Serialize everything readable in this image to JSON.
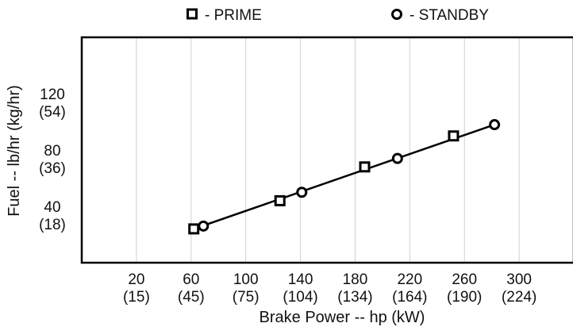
{
  "chart_data": {
    "type": "scatter",
    "title": "",
    "xlabel": "Brake Power -- hp (kW)",
    "ylabel": "Fuel -- lb/hr (kg/hr)",
    "xlim": [
      -20,
      340
    ],
    "ylim": [
      0,
      160
    ],
    "grid": "vertical",
    "legend_position": "top",
    "x_ticks": [
      {
        "value": 20,
        "label": "20",
        "sub": "(15)"
      },
      {
        "value": 60,
        "label": "60",
        "sub": "(45)"
      },
      {
        "value": 100,
        "label": "100",
        "sub": "(75)"
      },
      {
        "value": 140,
        "label": "140",
        "sub": "(104)"
      },
      {
        "value": 180,
        "label": "180",
        "sub": "(134)"
      },
      {
        "value": 220,
        "label": "220",
        "sub": "(164)"
      },
      {
        "value": 260,
        "label": "260",
        "sub": "(190)"
      },
      {
        "value": 300,
        "label": "300",
        "sub": "(224)"
      }
    ],
    "y_ticks": [
      {
        "value": 40,
        "label": "40",
        "sub": "(18)"
      },
      {
        "value": 80,
        "label": "80",
        "sub": "(36)"
      },
      {
        "value": 120,
        "label": "120",
        "sub": "(54)"
      }
    ],
    "series": [
      {
        "name": "- PRIME",
        "marker": "square",
        "points": [
          {
            "x": 62,
            "y": 24
          },
          {
            "x": 125,
            "y": 44
          },
          {
            "x": 187,
            "y": 68
          },
          {
            "x": 252,
            "y": 90
          }
        ]
      },
      {
        "name": "- STANDBY",
        "marker": "circle",
        "points": [
          {
            "x": 69,
            "y": 26
          },
          {
            "x": 141,
            "y": 50
          },
          {
            "x": 211,
            "y": 74
          },
          {
            "x": 282,
            "y": 98
          }
        ]
      }
    ],
    "fit_line": {
      "x": [
        62,
        282
      ],
      "y": [
        24,
        98
      ]
    }
  }
}
